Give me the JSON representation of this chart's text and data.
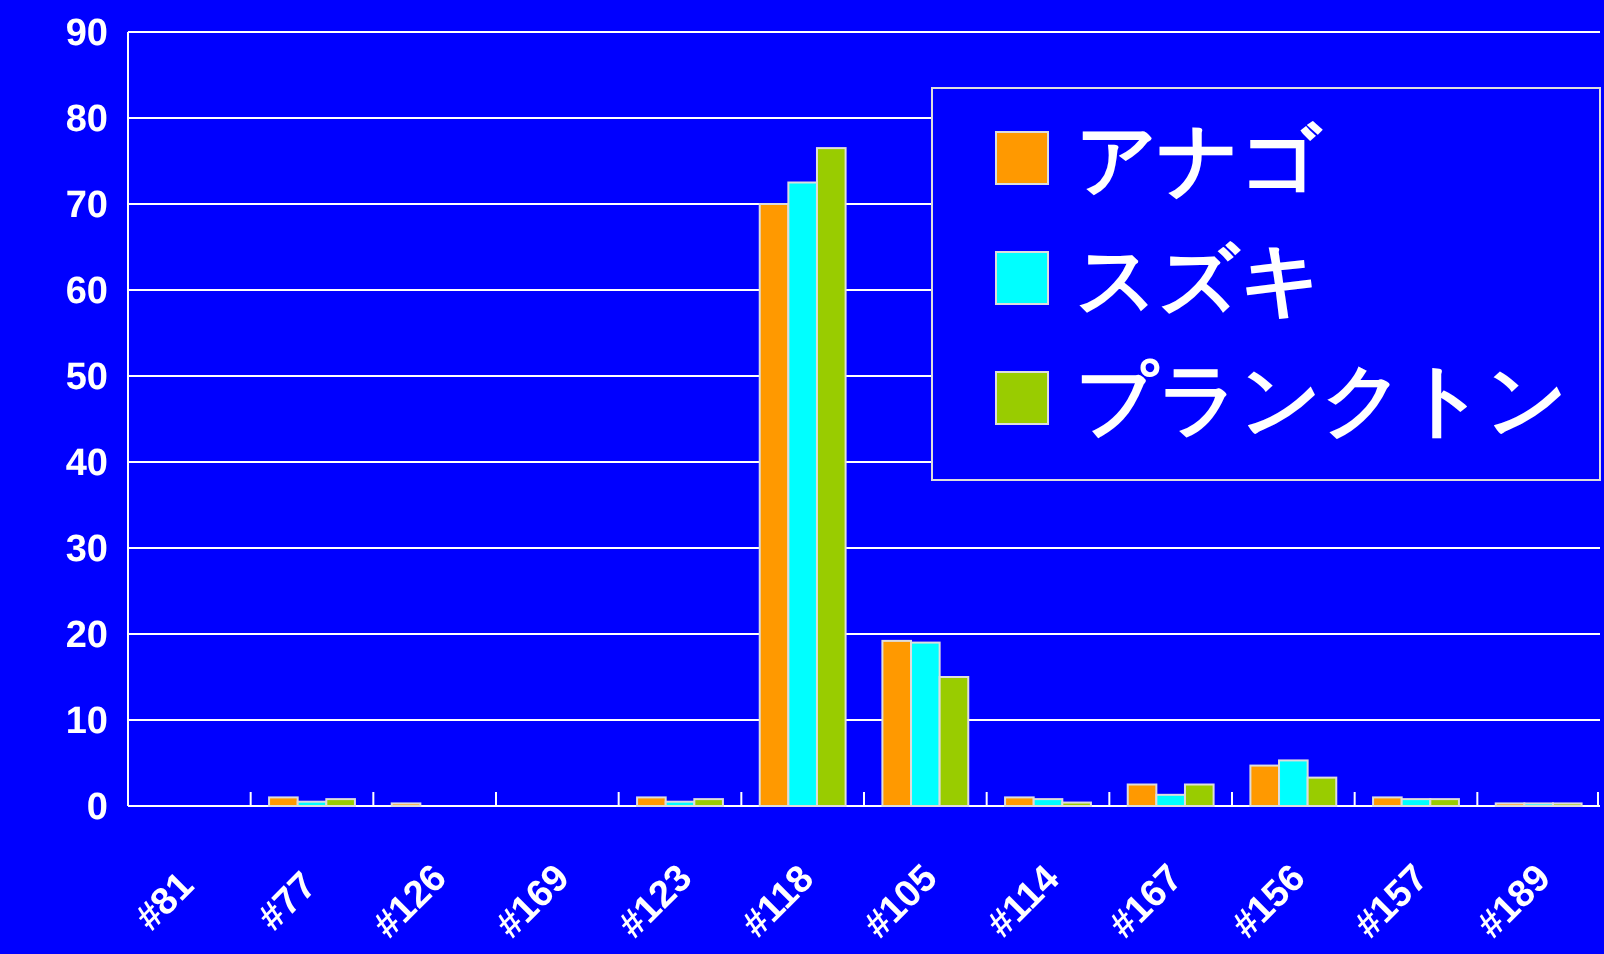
{
  "chart_data": {
    "type": "bar",
    "categories": [
      "#81",
      "#77",
      "#126",
      "#169",
      "#123",
      "#118",
      "#105",
      "#114",
      "#167",
      "#156",
      "#157",
      "#189"
    ],
    "series": [
      {
        "name": "アナゴ",
        "color": "#ff9900",
        "values": [
          0,
          1,
          0.3,
          0,
          1,
          70,
          19.2,
          1,
          2.5,
          4.7,
          1,
          0.3
        ]
      },
      {
        "name": "スズキ",
        "color": "#00ffff",
        "values": [
          0,
          0.5,
          0,
          0,
          0.5,
          72.5,
          19,
          0.8,
          1.3,
          5.3,
          0.8,
          0.3
        ]
      },
      {
        "name": "プランクトン",
        "color": "#99cc00",
        "values": [
          0,
          0.8,
          0,
          0,
          0.8,
          76.5,
          15,
          0.4,
          2.5,
          3.3,
          0.8,
          0.3
        ]
      }
    ],
    "ylim": [
      0,
      90
    ],
    "yticks": [
      0,
      10,
      20,
      30,
      40,
      50,
      60,
      70,
      80,
      90
    ],
    "grid": "y",
    "legend": "top right"
  }
}
